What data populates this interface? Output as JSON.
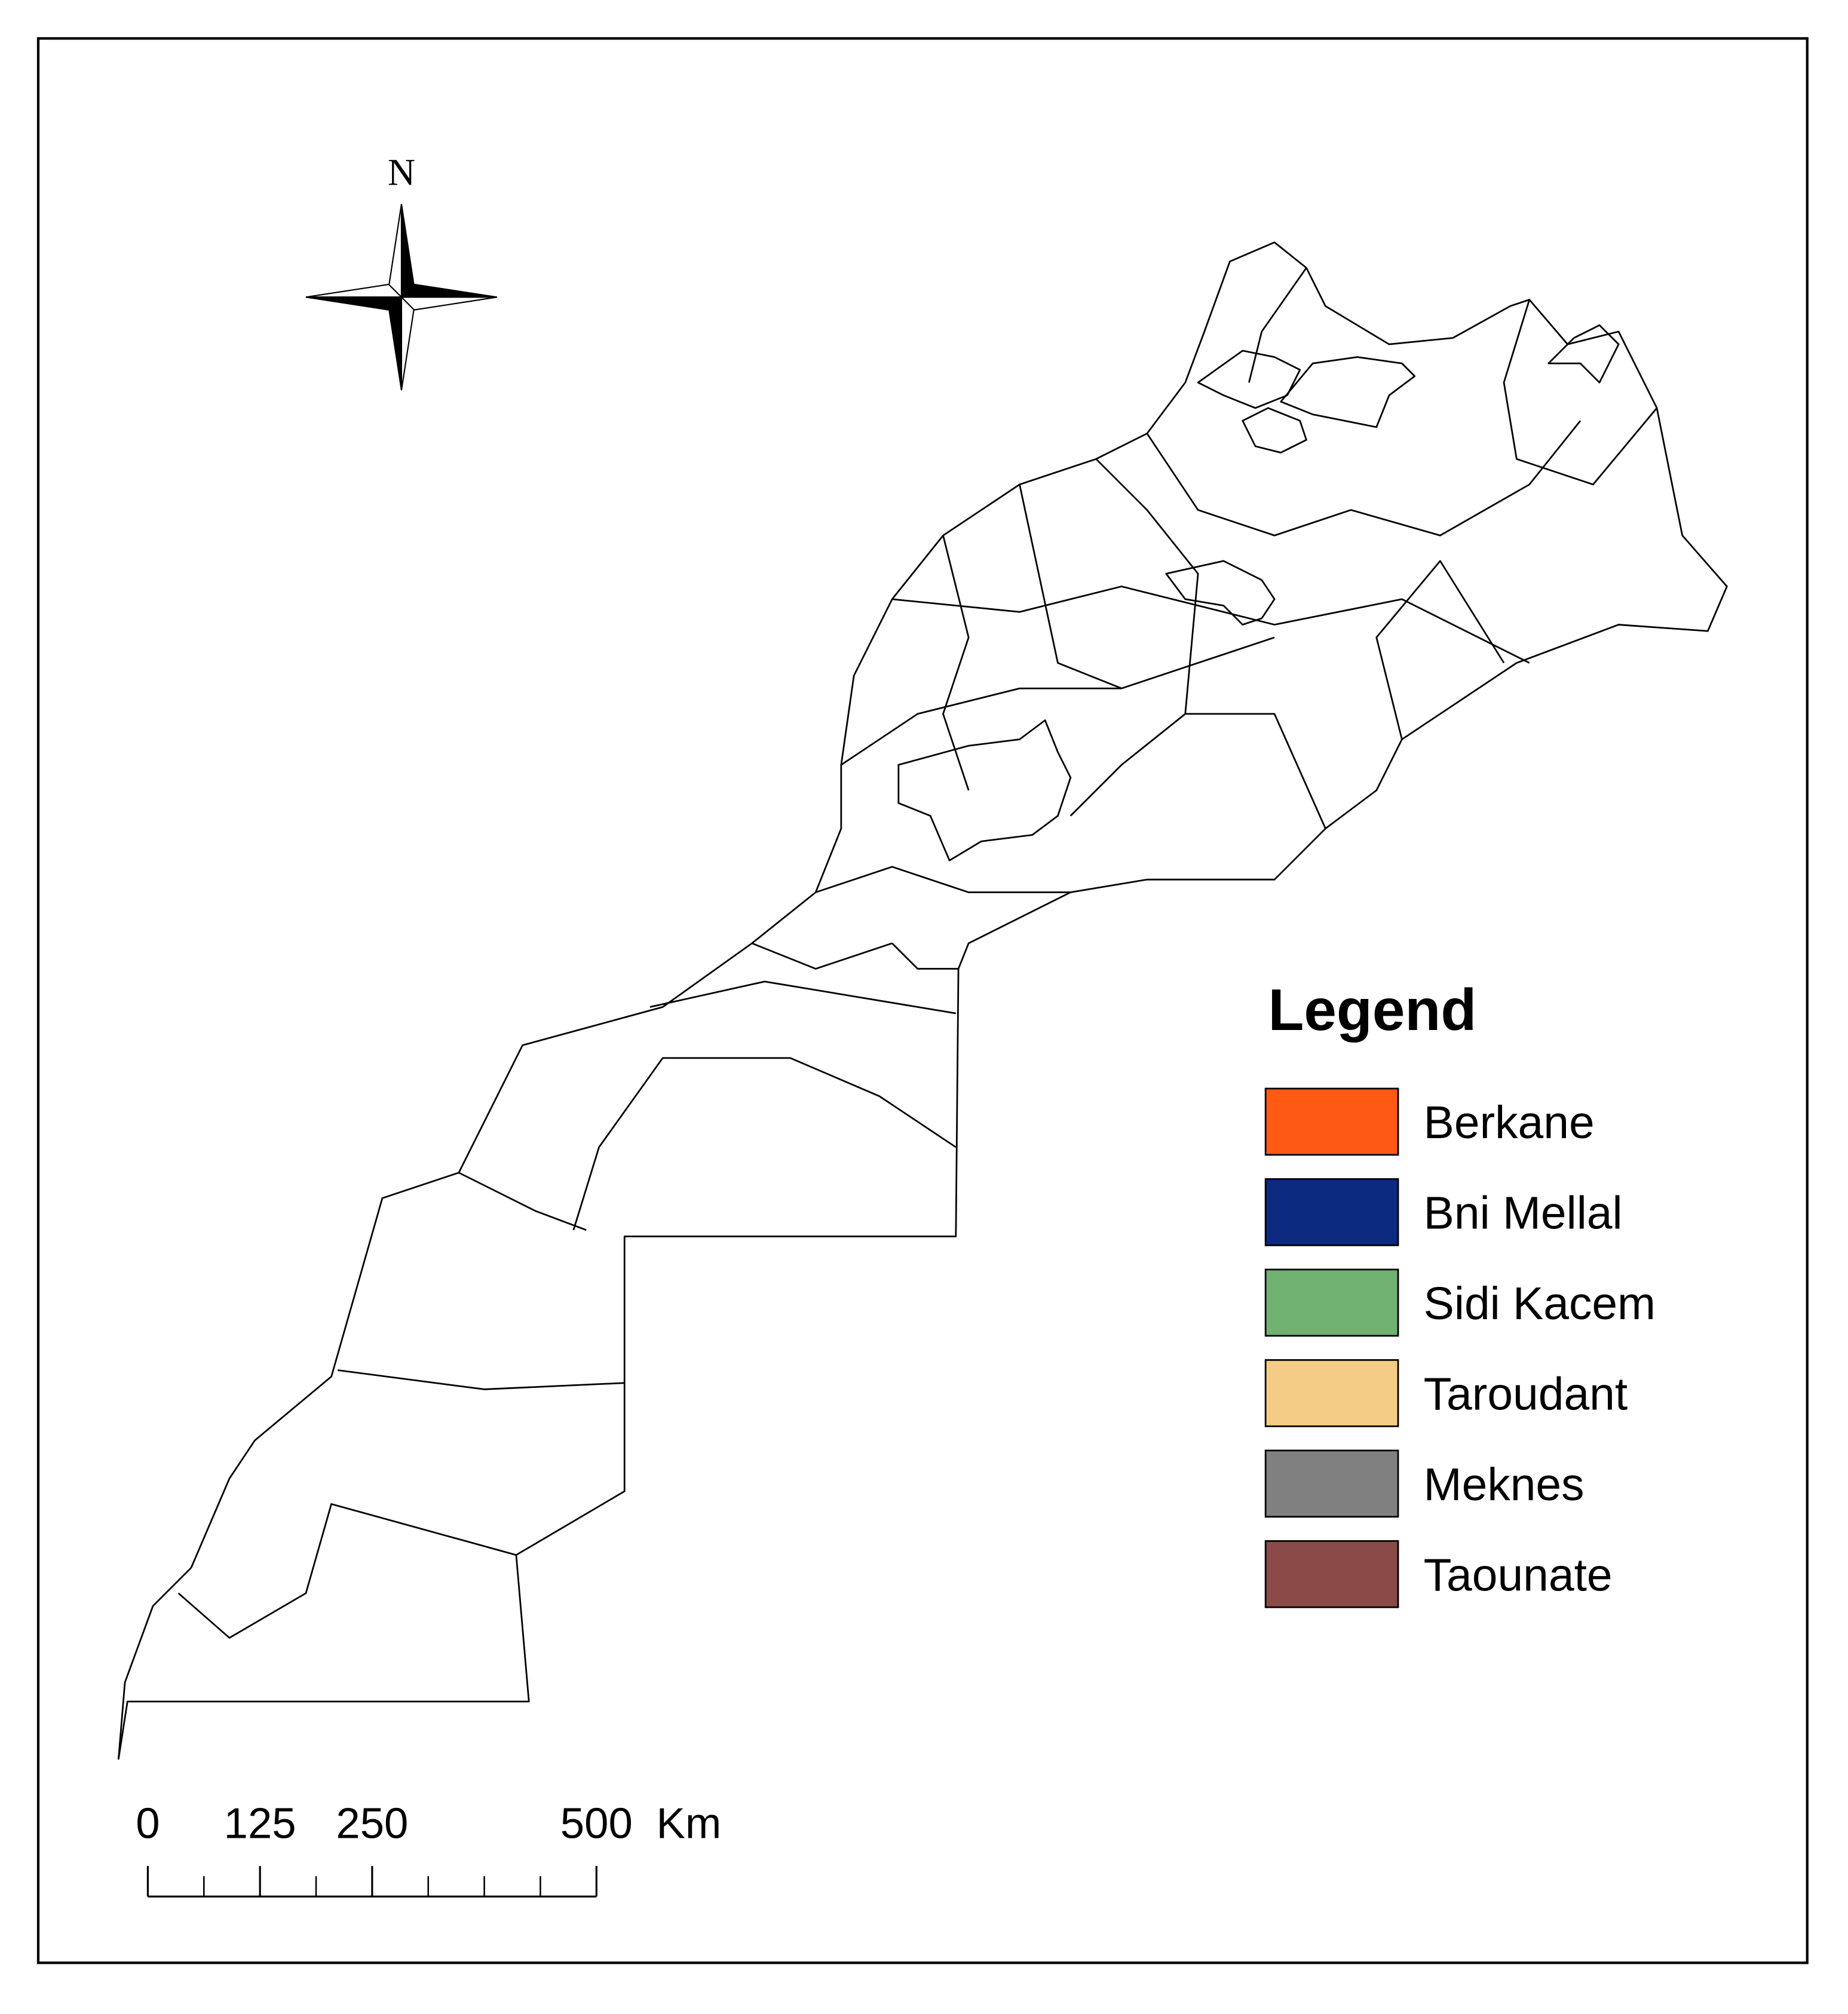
{
  "north": "N",
  "legend": {
    "title": "Legend",
    "items": [
      {
        "name": "Berkane",
        "color": "#ff5a14"
      },
      {
        "name": "Bni Mellal",
        "color": "#0c2a80"
      },
      {
        "name": "Sidi Kacem",
        "color": "#70b070"
      },
      {
        "name": "Taroudant",
        "color": "#f5cc85"
      },
      {
        "name": "Meknes",
        "color": "#808080"
      },
      {
        "name": "Taounate",
        "color": "#8a4a47"
      }
    ]
  },
  "scale": {
    "ticks": [
      0,
      125,
      250,
      500
    ],
    "unit": "Km"
  }
}
